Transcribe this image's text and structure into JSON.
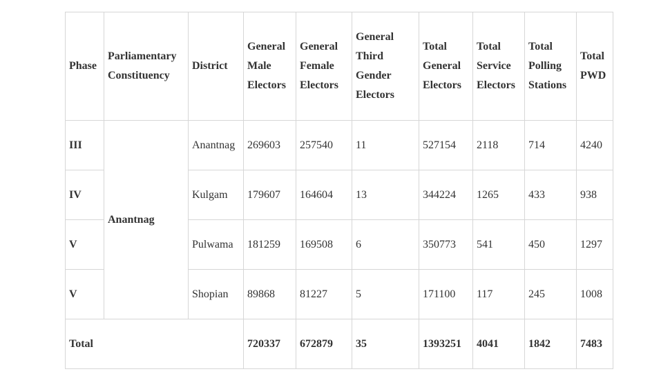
{
  "headers": [
    "Phase",
    "Parliamentary Constituency",
    "District",
    "General Male Electors",
    "General Female Electors",
    "General Third Gender Electors",
    "Total General Electors",
    "Total Service Electors",
    "Total Polling Stations",
    "Total PWD"
  ],
  "constituency": "Anantnag",
  "rows": [
    {
      "phase": "III",
      "district": "Anantnag",
      "male": "269603",
      "female": "257540",
      "third": "11",
      "general": "527154",
      "service": "2118",
      "polling": "714",
      "pwd": "4240"
    },
    {
      "phase": "IV",
      "district": "Kulgam",
      "male": "179607",
      "female": "164604",
      "third": "13",
      "general": "344224",
      "service": "1265",
      "polling": "433",
      "pwd": "938"
    },
    {
      "phase": "V",
      "district": "Pulwama",
      "male": "181259",
      "female": "169508",
      "third": "6",
      "general": "350773",
      "service": "541",
      "polling": "450",
      "pwd": "1297"
    },
    {
      "phase": "V",
      "district": "Shopian",
      "male": "89868",
      "female": "81227",
      "third": "5",
      "general": "171100",
      "service": "117",
      "polling": "245",
      "pwd": "1008"
    }
  ],
  "total": {
    "label": "Total",
    "male": "720337",
    "female": "672879",
    "third": "35",
    "general": "1393251",
    "service": "4041",
    "polling": "1842",
    "pwd": "7483"
  }
}
